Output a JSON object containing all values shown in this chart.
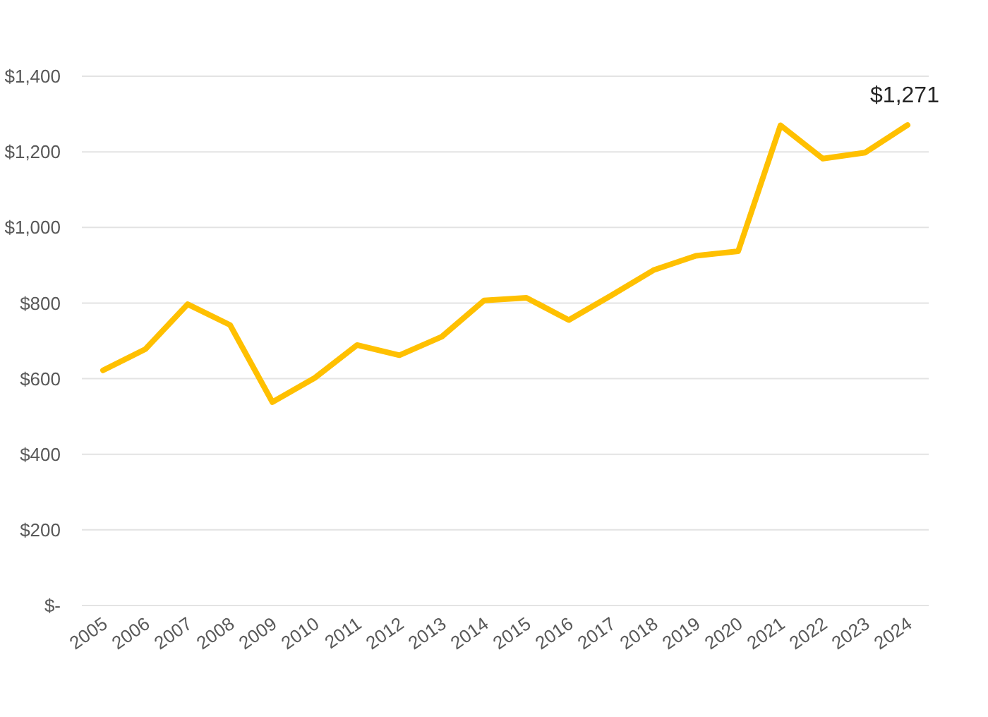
{
  "chart_data": {
    "type": "line",
    "categories": [
      "2005",
      "2006",
      "2007",
      "2008",
      "2009",
      "2010",
      "2011",
      "2012",
      "2013",
      "2014",
      "2015",
      "2016",
      "2017",
      "2018",
      "2019",
      "2020",
      "2021",
      "2022",
      "2023",
      "2024"
    ],
    "values": [
      622,
      678,
      797,
      742,
      538,
      602,
      689,
      662,
      711,
      807,
      814,
      755,
      820,
      887,
      925,
      937,
      1270,
      1182,
      1198,
      1271
    ],
    "color": "#ffc000",
    "line_style": "solid",
    "value_labels": [
      null,
      null,
      null,
      null,
      null,
      null,
      null,
      null,
      null,
      null,
      null,
      null,
      null,
      null,
      null,
      null,
      null,
      null,
      null,
      "$1,271"
    ],
    "ylim": [
      0,
      1400
    ],
    "yticks": [
      {
        "value": 0,
        "label": "$-"
      },
      {
        "value": 200,
        "label": "$200"
      },
      {
        "value": 400,
        "label": "$400"
      },
      {
        "value": 600,
        "label": "$600"
      },
      {
        "value": 800,
        "label": "$800"
      },
      {
        "value": 1000,
        "label": "$1,000"
      },
      {
        "value": 1200,
        "label": "$1,200"
      },
      {
        "value": 1400,
        "label": "$1,400"
      }
    ],
    "grid": "y"
  }
}
